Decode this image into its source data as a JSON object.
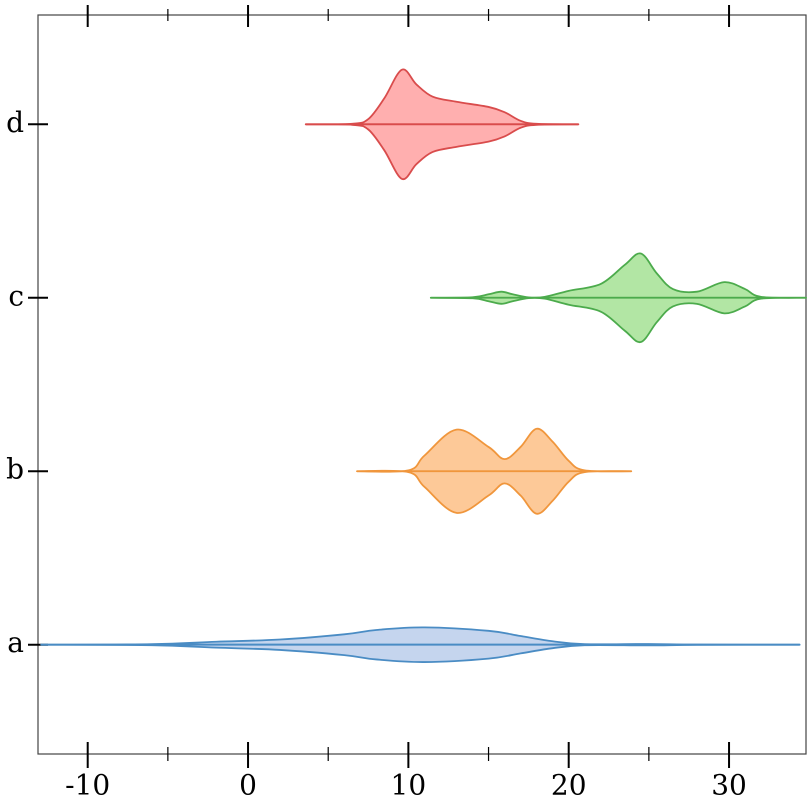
{
  "chart_data": {
    "type": "violin",
    "orientation": "horizontal",
    "categories": [
      "a",
      "b",
      "c",
      "d"
    ],
    "xlim": [
      -13.1,
      34.8
    ],
    "xticks": [
      -10,
      0,
      10,
      20,
      30
    ],
    "xminorticks": [
      -5,
      5,
      15,
      25
    ],
    "ylim": [
      -0.63,
      3.63
    ],
    "series": [
      {
        "name": "a",
        "color": "#4a8cc4",
        "fill": "#c5d5ee",
        "x": [
          -12.9,
          -6,
          -2,
          2,
          6,
          8,
          11,
          15,
          17,
          19,
          21,
          25,
          28,
          34.4
        ],
        "density": [
          0,
          0.003,
          0.017,
          0.03,
          0.06,
          0.085,
          0.1,
          0.08,
          0.05,
          0.02,
          0.003,
          0.004,
          0.001,
          0
        ]
      },
      {
        "name": "b",
        "color": "#f0963c",
        "fill": "#fdc998",
        "x": [
          6.8,
          10,
          11,
          13,
          15,
          16,
          17,
          18,
          19,
          20,
          21,
          23.9
        ],
        "density": [
          0,
          0.005,
          0.09,
          0.24,
          0.14,
          0.07,
          0.14,
          0.245,
          0.17,
          0.06,
          0.005,
          0
        ]
      },
      {
        "name": "c",
        "color": "#4cab4c",
        "fill": "#b2e6a4",
        "x": [
          11.4,
          14,
          15,
          15.8,
          16.5,
          17.5,
          18.5,
          20,
          22,
          23.5,
          24.5,
          25.5,
          26.5,
          28,
          29.7,
          31,
          32,
          34.8
        ],
        "density": [
          0,
          0.003,
          0.02,
          0.035,
          0.02,
          0.002,
          0.005,
          0.04,
          0.08,
          0.19,
          0.255,
          0.14,
          0.05,
          0.035,
          0.09,
          0.05,
          0.005,
          0
        ]
      },
      {
        "name": "d",
        "color": "#d94c4c",
        "fill": "#ffafaf",
        "x": [
          3.6,
          6.5,
          7.5,
          8.5,
          9.6,
          10.5,
          11.5,
          13,
          15,
          16,
          17,
          18,
          20.6
        ],
        "density": [
          0,
          0.003,
          0.03,
          0.15,
          0.315,
          0.23,
          0.16,
          0.13,
          0.1,
          0.07,
          0.02,
          0.003,
          0
        ]
      }
    ]
  }
}
